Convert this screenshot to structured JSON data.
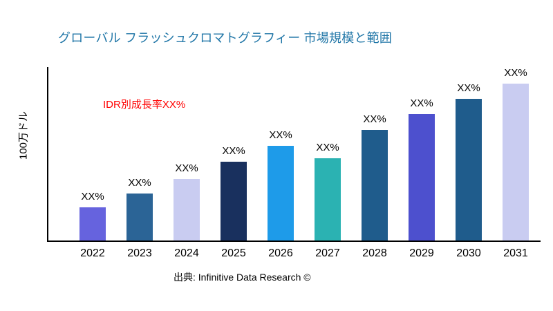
{
  "colors": {
    "background": "#FFFFFF",
    "title": "#2076A7",
    "annotation": "#FF0000",
    "axis": "#000000",
    "text": "#000000"
  },
  "annotation": {
    "text": "IDR別成長率XX%"
  },
  "footer": {
    "source": "出典: Infinitive Data Research ©"
  },
  "chart_data": {
    "type": "bar",
    "title": "グローバル フラッシュクロマトグラフィー 市場規模と範囲",
    "xlabel": "",
    "ylabel": "100万ドル",
    "categories": [
      "2022",
      "2023",
      "2024",
      "2025",
      "2026",
      "2027",
      "2028",
      "2029",
      "2030",
      "2031"
    ],
    "values": [
      21,
      30,
      39,
      50,
      60,
      52,
      70,
      80,
      90,
      100
    ],
    "bar_labels": [
      "XX%",
      "XX%",
      "XX%",
      "XX%",
      "XX%",
      "XX%",
      "XX%",
      "XX%",
      "XX%",
      "XX%"
    ],
    "bar_colors": [
      "#6663DE",
      "#2B6496",
      "#C9CCF1",
      "#19305E",
      "#1E9BE9",
      "#2BB2B2",
      "#1F5C8C",
      "#4D50CE",
      "#1F5C8C",
      "#C9CCF1"
    ],
    "ylim": [
      0,
      110
    ],
    "grid": false,
    "legend": null
  }
}
